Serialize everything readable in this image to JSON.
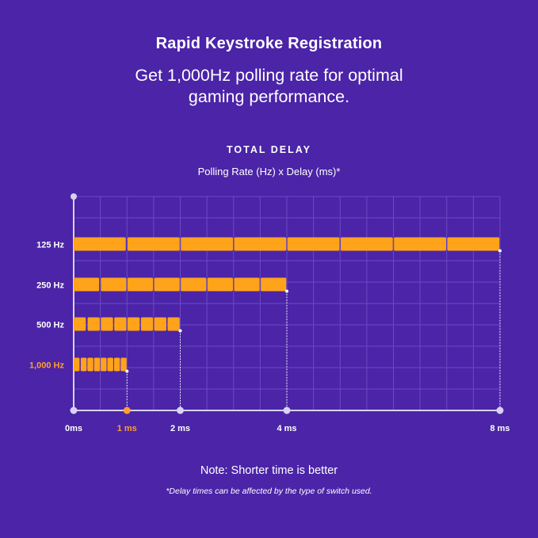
{
  "header": {
    "title": "Rapid Keystroke Registration",
    "subtitle_line1": "Get 1,000Hz polling rate for optimal",
    "subtitle_line2": "gaming performance."
  },
  "footer": {
    "note": "Note: Shorter time is better",
    "footnote": "*Delay times can be affected by the type of switch used."
  },
  "colors": {
    "background": "#4b24a8",
    "bar": "#ffa31a",
    "highlight": "#ff9f2e",
    "grid": "#6a4bc0",
    "axis": "#d9d2f0"
  },
  "chart_data": {
    "type": "bar",
    "orientation": "horizontal",
    "title": "TOTAL DELAY",
    "subtitle": "Polling Rate (Hz) x Delay (ms)*",
    "categories": [
      "125 Hz",
      "250 Hz",
      "500 Hz",
      "1,000 Hz"
    ],
    "values": [
      8,
      4,
      2,
      1
    ],
    "segments": [
      8,
      8,
      8,
      8
    ],
    "highlight_category": "1,000 Hz",
    "x_ticks": [
      {
        "value": 0,
        "label": "0ms"
      },
      {
        "value": 1,
        "label": "1 ms",
        "highlight": true
      },
      {
        "value": 2,
        "label": "2 ms"
      },
      {
        "value": 4,
        "label": "4 ms"
      },
      {
        "value": 8,
        "label": "8 ms"
      }
    ],
    "xlim": [
      0,
      8
    ],
    "grid": true
  }
}
